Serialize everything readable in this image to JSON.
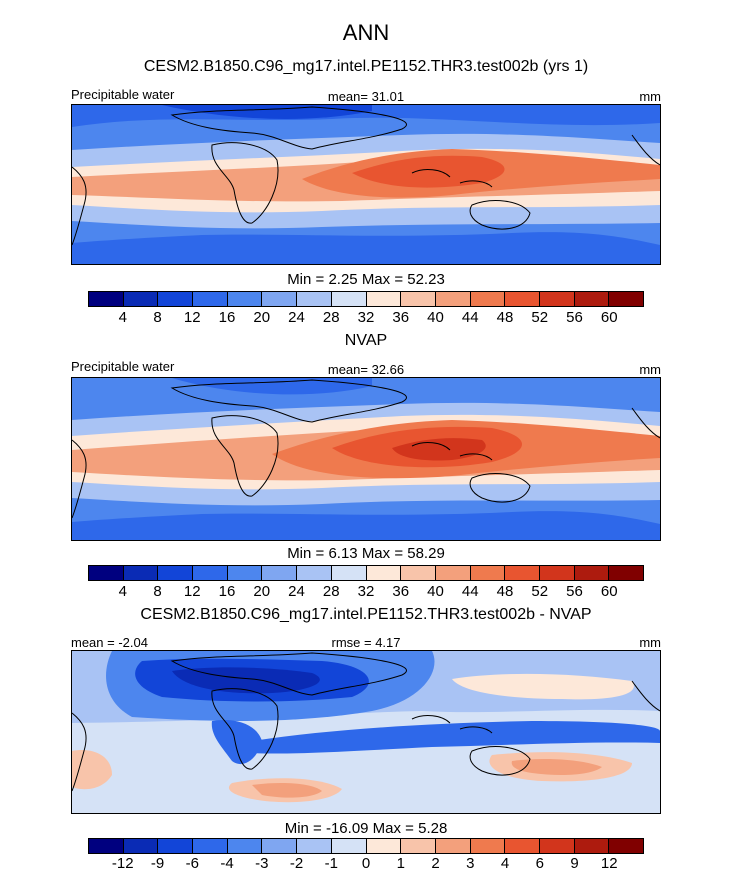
{
  "title": "ANN",
  "chart_data": [
    {
      "type": "heatmap",
      "title": "CESM2.B1850.C96_mg17.intel.PE1152.THR3.test002b (yrs 1)",
      "left_label": "Precipitable water",
      "center_label": "mean=  31.01",
      "units": "mm",
      "min_max_label": "Min =   2.25 Max =  52.23",
      "stats": {
        "mean": 31.01,
        "min": 2.25,
        "max": 52.23
      },
      "colorbar_levels": [
        4,
        8,
        12,
        16,
        20,
        24,
        28,
        32,
        36,
        40,
        44,
        48,
        52,
        56,
        60
      ],
      "colorbar_ticks": [
        "4",
        "8",
        "12",
        "16",
        "20",
        "24",
        "28",
        "32",
        "36",
        "40",
        "44",
        "48",
        "52",
        "56",
        "60"
      ]
    },
    {
      "type": "heatmap",
      "title": "NVAP",
      "left_label": "Precipitable water",
      "center_label": "mean=  32.66",
      "units": "mm",
      "min_max_label": "Min =   6.13 Max =  58.29",
      "stats": {
        "mean": 32.66,
        "min": 6.13,
        "max": 58.29
      },
      "colorbar_levels": [
        4,
        8,
        12,
        16,
        20,
        24,
        28,
        32,
        36,
        40,
        44,
        48,
        52,
        56,
        60
      ],
      "colorbar_ticks": [
        "4",
        "8",
        "12",
        "16",
        "20",
        "24",
        "28",
        "32",
        "36",
        "40",
        "44",
        "48",
        "52",
        "56",
        "60"
      ]
    },
    {
      "type": "heatmap",
      "title": "CESM2.B1850.C96_mg17.intel.PE1152.THR3.test002b - NVAP",
      "left_label": "mean =  -2.04",
      "center_label": "rmse =   4.17",
      "units": "mm",
      "min_max_label": "Min = -16.09 Max =   5.28",
      "stats": {
        "mean": -2.04,
        "rmse": 4.17,
        "min": -16.09,
        "max": 5.28
      },
      "colorbar_levels": [
        -12,
        -9,
        -6,
        -4,
        -3,
        -2,
        -1,
        0,
        1,
        2,
        3,
        4,
        6,
        9,
        12
      ],
      "colorbar_ticks": [
        "-12",
        "-9",
        "-6",
        "-4",
        "-3",
        "-2",
        "-1",
        "0",
        "1",
        "2",
        "3",
        "4",
        "6",
        "9",
        "12"
      ]
    }
  ],
  "colormap": [
    "#00007f",
    "#0a2bb5",
    "#1245d8",
    "#2e68ea",
    "#4d86ee",
    "#7fa6f1",
    "#a9c3f4",
    "#d5e2f6",
    "#fde8d9",
    "#f8c4aa",
    "#f3a07c",
    "#ef7a4e",
    "#e85530",
    "#d2351c",
    "#ad1b0e",
    "#800000"
  ]
}
